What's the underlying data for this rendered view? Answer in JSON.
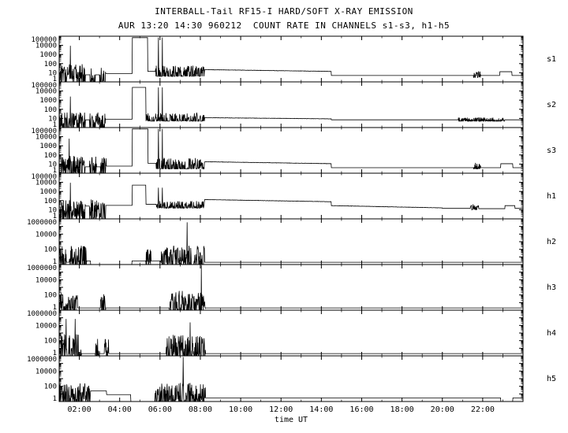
{
  "title": "INTERBALL-Tail RF15-I HARD/SOFT X-RAY EMISSION",
  "subtitle": "AUR 13:20 14:30 960212  COUNT RATE IN CHANNELS s1-s3, h1-h5",
  "xlabel": "time UT",
  "chart_data": {
    "type": "line",
    "title": "INTERBALL-Tail RF15-I HARD/SOFT X-RAY EMISSION",
    "subtitle": "AUR 13:20 14:30 960212  COUNT RATE IN CHANNELS s1-s3, h1-h5",
    "xlabel": "time UT",
    "y_scale": "log",
    "grid": false,
    "x_range_hours": [
      1,
      24
    ],
    "x_major_tick_hours": [
      2,
      4,
      6,
      8,
      10,
      12,
      14,
      16,
      18,
      20,
      22
    ],
    "x_major_ticks": [
      "02:00",
      "04:00",
      "06:00",
      "08:00",
      "10:00",
      "12:00",
      "14:00",
      "16:00",
      "18:00",
      "20:00",
      "22:00"
    ],
    "panels": [
      {
        "label": "s1",
        "ylim": [
          1,
          100000
        ],
        "yticks": [
          {
            "value": 100000,
            "label": "100000"
          },
          {
            "value": 10000,
            "label": "10000"
          },
          {
            "value": 1000,
            "label": "1000"
          },
          {
            "value": 100,
            "label": "100"
          },
          {
            "value": 10,
            "label": "10"
          },
          {
            "value": 1,
            "label": "1"
          }
        ],
        "segments": [
          {
            "t0": 1.0,
            "t1": 2.3,
            "type": "noise",
            "min": 1,
            "max": 90,
            "density": 0.75
          },
          {
            "t0": 2.3,
            "t1": 2.5,
            "type": "flat",
            "level": 6
          },
          {
            "t0": 2.5,
            "t1": 2.8,
            "type": "noise",
            "min": 1,
            "max": 60,
            "density": 0.7
          },
          {
            "t0": 2.8,
            "t1": 3.0,
            "type": "flat",
            "level": 6
          },
          {
            "t0": 3.0,
            "t1": 3.3,
            "type": "noise",
            "min": 1,
            "max": 60,
            "density": 0.7
          },
          {
            "t0": 3.3,
            "t1": 4.62,
            "type": "flat",
            "level": 8
          },
          {
            "t0": 4.62,
            "t1": 5.38,
            "type": "flat",
            "level": 70000
          },
          {
            "t0": 5.38,
            "t1": 5.78,
            "type": "flat",
            "level": 14
          },
          {
            "t0": 5.78,
            "t1": 8.2,
            "type": "noise",
            "min": 4,
            "max": 60,
            "density": 0.55
          },
          {
            "t0": 8.2,
            "t1": 14.5,
            "type": "ramp",
            "from": 22,
            "to": 14
          },
          {
            "t0": 14.5,
            "t1": 21.55,
            "type": "flat",
            "level": 5
          },
          {
            "t0": 21.55,
            "t1": 21.9,
            "type": "noise",
            "min": 3,
            "max": 14,
            "density": 0.7
          },
          {
            "t0": 21.9,
            "t1": 22.85,
            "type": "flat",
            "level": 5
          },
          {
            "t0": 22.85,
            "t1": 23.45,
            "type": "flat",
            "level": 13
          },
          {
            "t0": 23.45,
            "t1": 24.01,
            "type": "flat",
            "level": 5
          }
        ],
        "spikes": [
          {
            "t": 1.55,
            "v": 9000
          },
          {
            "t": 5.92,
            "v": 70000
          },
          {
            "t": 6.12,
            "v": 70000
          }
        ]
      },
      {
        "label": "s2",
        "ylim": [
          1,
          100000
        ],
        "yticks": [
          {
            "value": 100000,
            "label": "100000"
          },
          {
            "value": 10000,
            "label": "10000"
          },
          {
            "value": 1000,
            "label": "1000"
          },
          {
            "value": 100,
            "label": "100"
          },
          {
            "value": 10,
            "label": "10"
          },
          {
            "value": 1,
            "label": "1"
          }
        ],
        "segments": [
          {
            "t0": 1.0,
            "t1": 2.3,
            "type": "noise",
            "min": 1,
            "max": 50,
            "density": 0.7
          },
          {
            "t0": 2.3,
            "t1": 2.5,
            "type": "flat",
            "level": 7
          },
          {
            "t0": 2.5,
            "t1": 3.3,
            "type": "noise",
            "min": 1,
            "max": 50,
            "density": 0.7
          },
          {
            "t0": 3.3,
            "t1": 4.62,
            "type": "flat",
            "level": 8
          },
          {
            "t0": 4.62,
            "t1": 5.3,
            "type": "flat",
            "level": 25000
          },
          {
            "t0": 5.3,
            "t1": 8.2,
            "type": "noise",
            "min": 5,
            "max": 40,
            "density": 0.55
          },
          {
            "t0": 8.2,
            "t1": 14.5,
            "type": "ramp",
            "from": 12,
            "to": 9
          },
          {
            "t0": 14.5,
            "t1": 20.8,
            "type": "flat",
            "level": 7
          },
          {
            "t0": 20.8,
            "t1": 23.1,
            "type": "noise",
            "min": 5,
            "max": 13,
            "density": 0.6
          },
          {
            "t0": 23.1,
            "t1": 24.01,
            "type": "flat",
            "level": 7
          }
        ],
        "spikes": [
          {
            "t": 1.55,
            "v": 2500
          },
          {
            "t": 5.92,
            "v": 25000
          },
          {
            "t": 6.12,
            "v": 25000
          }
        ]
      },
      {
        "label": "s3",
        "ylim": [
          1,
          100000
        ],
        "yticks": [
          {
            "value": 100000,
            "label": "100000"
          },
          {
            "value": 10000,
            "label": "10000"
          },
          {
            "value": 1000,
            "label": "1000"
          },
          {
            "value": 100,
            "label": "100"
          },
          {
            "value": 10,
            "label": "10"
          },
          {
            "value": 1,
            "label": "1"
          }
        ],
        "segments": [
          {
            "t0": 1.0,
            "t1": 2.3,
            "type": "noise",
            "min": 1,
            "max": 100,
            "density": 0.75
          },
          {
            "t0": 2.3,
            "t1": 2.5,
            "type": "flat",
            "level": 5
          },
          {
            "t0": 2.5,
            "t1": 2.85,
            "type": "noise",
            "min": 1,
            "max": 70,
            "density": 0.7
          },
          {
            "t0": 2.85,
            "t1": 3.05,
            "type": "flat",
            "level": 5
          },
          {
            "t0": 3.05,
            "t1": 3.35,
            "type": "noise",
            "min": 1,
            "max": 70,
            "density": 0.7
          },
          {
            "t0": 3.35,
            "t1": 4.62,
            "type": "flat",
            "level": 6
          },
          {
            "t0": 4.62,
            "t1": 5.4,
            "type": "flat",
            "level": 70000
          },
          {
            "t0": 5.4,
            "t1": 5.8,
            "type": "flat",
            "level": 12
          },
          {
            "t0": 5.8,
            "t1": 8.2,
            "type": "noise",
            "min": 3,
            "max": 50,
            "density": 0.55
          },
          {
            "t0": 8.2,
            "t1": 14.5,
            "type": "ramp",
            "from": 18,
            "to": 11
          },
          {
            "t0": 14.5,
            "t1": 21.55,
            "type": "flat",
            "level": 4
          },
          {
            "t0": 21.55,
            "t1": 21.9,
            "type": "noise",
            "min": 3,
            "max": 18,
            "density": 0.7
          },
          {
            "t0": 21.9,
            "t1": 22.9,
            "type": "flat",
            "level": 4
          },
          {
            "t0": 22.9,
            "t1": 23.5,
            "type": "flat",
            "level": 11
          },
          {
            "t0": 23.5,
            "t1": 24.01,
            "type": "flat",
            "level": 4
          }
        ],
        "spikes": [
          {
            "t": 1.5,
            "v": 6000
          },
          {
            "t": 5.92,
            "v": 70000
          },
          {
            "t": 6.12,
            "v": 70000
          }
        ]
      },
      {
        "label": "h1",
        "ylim": [
          1,
          100000
        ],
        "yticks": [
          {
            "value": 100000,
            "label": "100000"
          },
          {
            "value": 10000,
            "label": "10000"
          },
          {
            "value": 1000,
            "label": "1000"
          },
          {
            "value": 100,
            "label": "100"
          },
          {
            "value": 10,
            "label": "10"
          },
          {
            "value": 1,
            "label": "1"
          }
        ],
        "segments": [
          {
            "t0": 1.0,
            "t1": 2.3,
            "type": "noise",
            "min": 1,
            "max": 120,
            "density": 0.8
          },
          {
            "t0": 2.3,
            "t1": 2.5,
            "type": "flat",
            "level": 25
          },
          {
            "t0": 2.5,
            "t1": 3.3,
            "type": "noise",
            "min": 1,
            "max": 120,
            "density": 0.75
          },
          {
            "t0": 3.3,
            "t1": 4.62,
            "type": "flat",
            "level": 30
          },
          {
            "t0": 4.62,
            "t1": 5.3,
            "type": "flat",
            "level": 5000
          },
          {
            "t0": 5.3,
            "t1": 5.8,
            "type": "flat",
            "level": 40
          },
          {
            "t0": 5.8,
            "t1": 8.2,
            "type": "noise",
            "min": 15,
            "max": 90,
            "density": 0.7
          },
          {
            "t0": 8.2,
            "t1": 14.5,
            "type": "ramp",
            "from": 130,
            "to": 75
          },
          {
            "t0": 14.5,
            "t1": 20.0,
            "type": "ramp",
            "from": 28,
            "to": 16
          },
          {
            "t0": 20.0,
            "t1": 21.4,
            "type": "flat",
            "level": 14
          },
          {
            "t0": 21.4,
            "t1": 21.8,
            "type": "noise",
            "min": 10,
            "max": 40,
            "density": 0.7
          },
          {
            "t0": 21.8,
            "t1": 23.1,
            "type": "flat",
            "level": 13
          },
          {
            "t0": 23.1,
            "t1": 23.6,
            "type": "flat",
            "level": 28
          },
          {
            "t0": 23.6,
            "t1": 24.01,
            "type": "flat",
            "level": 14
          }
        ],
        "spikes": [
          {
            "t": 1.55,
            "v": 9000
          },
          {
            "t": 5.92,
            "v": 2600
          },
          {
            "t": 6.12,
            "v": 2600
          }
        ]
      },
      {
        "label": "h2",
        "ylim": [
          1,
          1000000
        ],
        "yticks": [
          {
            "value": 1000000,
            "label": "1000000"
          },
          {
            "value": 10000,
            "label": "10000"
          },
          {
            "value": 100,
            "label": "100"
          },
          {
            "value": 1,
            "label": "1"
          }
        ],
        "segments": [
          {
            "t0": 1.0,
            "t1": 1.35,
            "type": "noise",
            "min": 1,
            "max": 300,
            "density": 0.65
          },
          {
            "t0": 1.35,
            "t1": 1.5,
            "type": "flat",
            "level": 2
          },
          {
            "t0": 1.5,
            "t1": 2.35,
            "type": "noise",
            "min": 1,
            "max": 300,
            "density": 0.65
          },
          {
            "t0": 2.35,
            "t1": 2.55,
            "type": "flat",
            "level": 3
          },
          {
            "t0": 2.55,
            "t1": 4.6,
            "type": "flat",
            "level": 1
          },
          {
            "t0": 4.6,
            "t1": 5.3,
            "type": "flat",
            "level": 3
          },
          {
            "t0": 5.3,
            "t1": 5.55,
            "type": "noise",
            "min": 1,
            "max": 200,
            "density": 0.6
          },
          {
            "t0": 5.55,
            "t1": 6.05,
            "type": "flat",
            "level": 3
          },
          {
            "t0": 6.05,
            "t1": 8.2,
            "type": "noise",
            "min": 1,
            "max": 300,
            "density": 0.6
          },
          {
            "t0": 8.2,
            "t1": 24.01,
            "type": "flat",
            "level": 2
          }
        ],
        "spikes": [
          {
            "t": 7.35,
            "v": 350000
          }
        ]
      },
      {
        "label": "h3",
        "ylim": [
          1,
          1000000
        ],
        "yticks": [
          {
            "value": 1000000,
            "label": "1000000"
          },
          {
            "value": 10000,
            "label": "10000"
          },
          {
            "value": 100,
            "label": "100"
          },
          {
            "value": 1,
            "label": "1"
          }
        ],
        "segments": [
          {
            "t0": 1.0,
            "t1": 1.9,
            "type": "noise",
            "min": 1,
            "max": 300,
            "density": 0.65
          },
          {
            "t0": 1.9,
            "t1": 3.05,
            "type": "flat",
            "level": 2
          },
          {
            "t0": 3.05,
            "t1": 3.3,
            "type": "noise",
            "min": 1,
            "max": 150,
            "density": 0.7
          },
          {
            "t0": 3.3,
            "t1": 6.45,
            "type": "flat",
            "level": 2
          },
          {
            "t0": 6.45,
            "t1": 8.25,
            "type": "noise",
            "min": 1,
            "max": 400,
            "density": 0.65
          },
          {
            "t0": 8.25,
            "t1": 24.01,
            "type": "flat",
            "level": 2
          }
        ],
        "spikes": [
          {
            "t": 8.05,
            "v": 800000
          }
        ]
      },
      {
        "label": "h4",
        "ylim": [
          1,
          1000000
        ],
        "yticks": [
          {
            "value": 1000000,
            "label": "1000000"
          },
          {
            "value": 10000,
            "label": "10000"
          },
          {
            "value": 100,
            "label": "100"
          },
          {
            "value": 1,
            "label": "1"
          }
        ],
        "segments": [
          {
            "t0": 1.0,
            "t1": 2.1,
            "type": "noise",
            "min": 1,
            "max": 800,
            "density": 0.65
          },
          {
            "t0": 2.1,
            "t1": 2.8,
            "type": "flat",
            "level": 2
          },
          {
            "t0": 2.8,
            "t1": 3.0,
            "type": "noise",
            "min": 1,
            "max": 200,
            "density": 0.7
          },
          {
            "t0": 3.0,
            "t1": 3.25,
            "type": "flat",
            "level": 2
          },
          {
            "t0": 3.25,
            "t1": 3.45,
            "type": "noise",
            "min": 1,
            "max": 150,
            "density": 0.7
          },
          {
            "t0": 3.45,
            "t1": 6.3,
            "type": "flat",
            "level": 2
          },
          {
            "t0": 6.3,
            "t1": 8.25,
            "type": "noise",
            "min": 1,
            "max": 600,
            "density": 0.65
          },
          {
            "t0": 8.25,
            "t1": 24.01,
            "type": "flat",
            "level": 2
          }
        ],
        "spikes": [
          {
            "t": 1.35,
            "v": 70000
          },
          {
            "t": 1.8,
            "v": 70000
          },
          {
            "t": 7.5,
            "v": 25000
          }
        ]
      },
      {
        "label": "h5",
        "ylim": [
          1,
          1000000
        ],
        "yticks": [
          {
            "value": 1000000,
            "label": "1000000"
          },
          {
            "value": 10000,
            "label": "10000"
          },
          {
            "value": 100,
            "label": "100"
          },
          {
            "value": 1,
            "label": "1"
          }
        ],
        "segments": [
          {
            "t0": 1.0,
            "t1": 2.55,
            "type": "noise",
            "min": 1,
            "max": 300,
            "density": 0.7
          },
          {
            "t0": 2.55,
            "t1": 3.35,
            "type": "flat",
            "level": 25
          },
          {
            "t0": 3.35,
            "t1": 4.55,
            "type": "flat",
            "level": 8
          },
          {
            "t0": 4.55,
            "t1": 5.75,
            "type": "flat",
            "level": 1
          },
          {
            "t0": 5.75,
            "t1": 8.25,
            "type": "noise",
            "min": 1,
            "max": 300,
            "density": 0.65
          },
          {
            "t0": 8.25,
            "t1": 22.9,
            "type": "flat",
            "level": 3
          },
          {
            "t0": 22.9,
            "t1": 23.5,
            "type": "flat",
            "level": 1
          },
          {
            "t0": 23.5,
            "t1": 24.01,
            "type": "flat",
            "level": 3
          }
        ],
        "spikes": [
          {
            "t": 7.15,
            "v": 700000
          }
        ]
      }
    ]
  }
}
